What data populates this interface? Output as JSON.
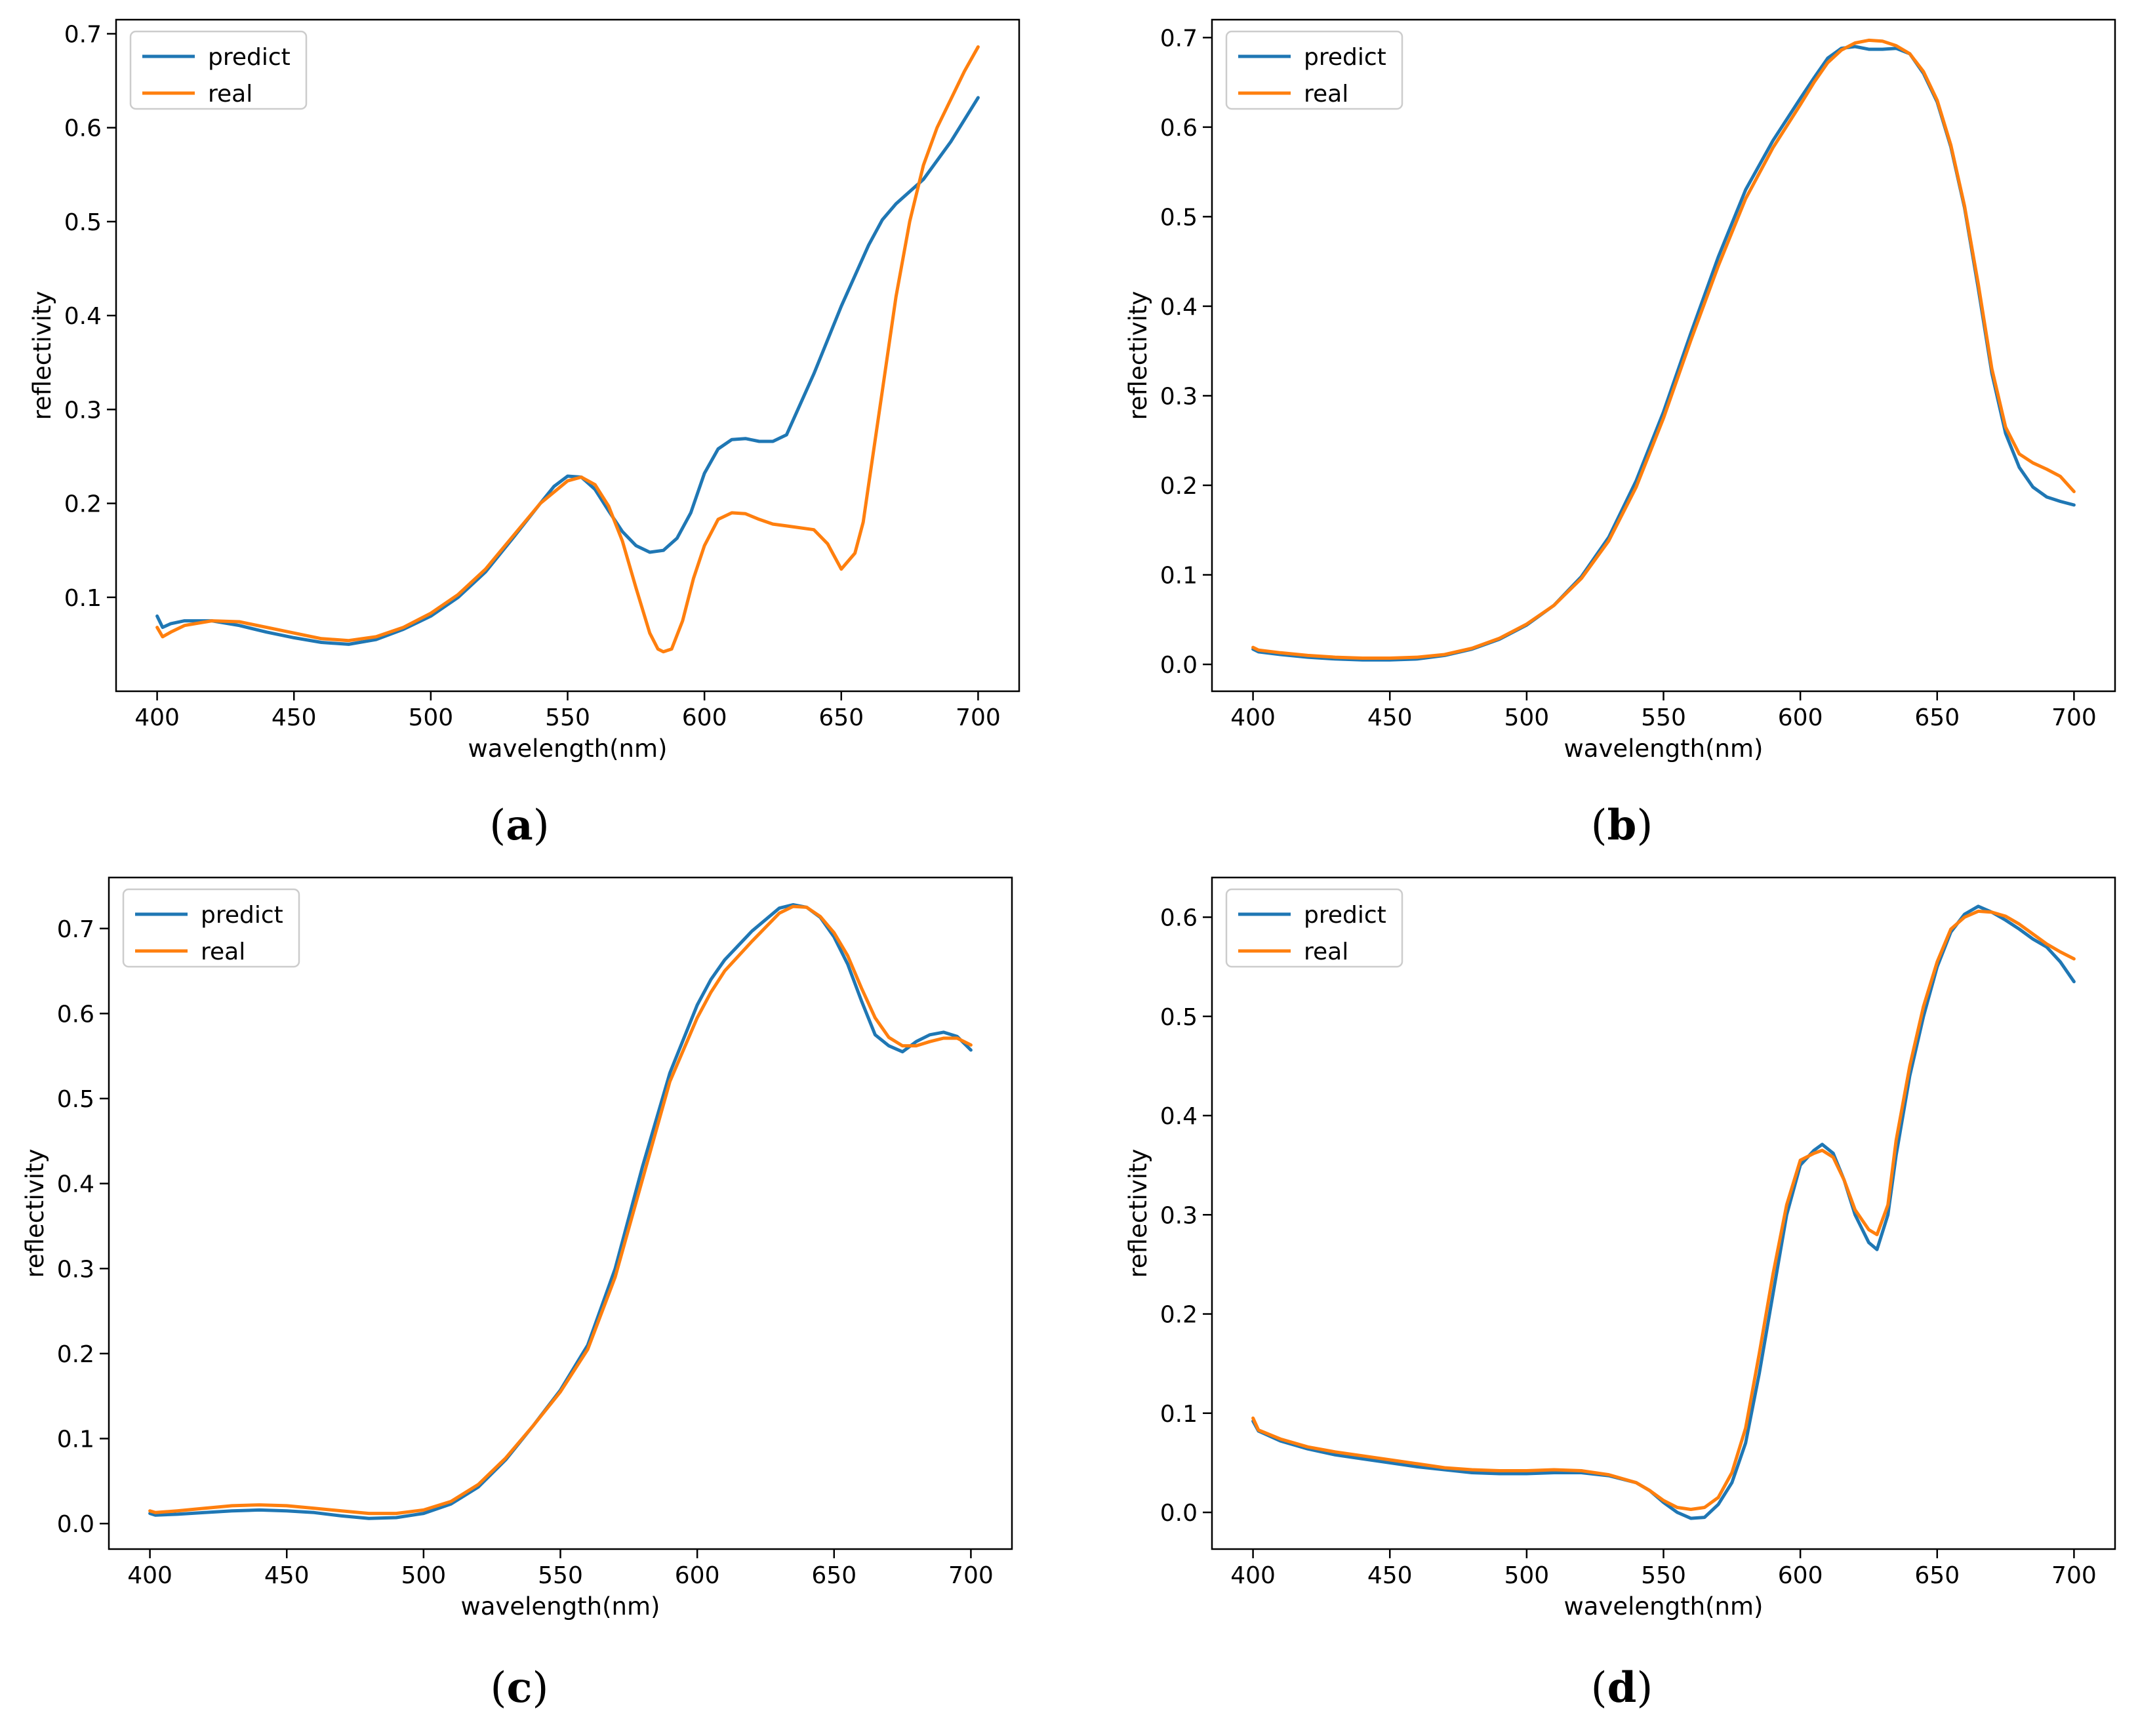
{
  "figure": {
    "captions": [
      "(a)",
      "(b)",
      "(c)",
      "(d)"
    ]
  },
  "colors": {
    "predict": "#1f77b4",
    "real": "#ff7f0e",
    "axis": "#000000",
    "legend_border": "#cccccc"
  },
  "chart_data": [
    {
      "type": "line",
      "panel": "a",
      "title": "",
      "xlabel": "wavelength(nm)",
      "ylabel": "reflectivity",
      "xlim": [
        385,
        715
      ],
      "ylim": [
        0.0,
        0.715
      ],
      "xticks": [
        400,
        450,
        500,
        550,
        600,
        650,
        700
      ],
      "yticks": [
        0.1,
        0.2,
        0.3,
        0.4,
        0.5,
        0.6,
        0.7
      ],
      "legend_position": "top-left",
      "grid": false,
      "series": [
        {
          "name": "predict",
          "x": [
            400,
            402,
            405,
            410,
            420,
            430,
            440,
            450,
            460,
            470,
            480,
            490,
            500,
            510,
            520,
            530,
            540,
            545,
            550,
            555,
            560,
            565,
            570,
            575,
            580,
            585,
            590,
            595,
            600,
            605,
            610,
            615,
            620,
            625,
            630,
            640,
            650,
            660,
            665,
            670,
            680,
            690,
            700
          ],
          "y": [
            0.08,
            0.068,
            0.072,
            0.075,
            0.075,
            0.07,
            0.063,
            0.057,
            0.052,
            0.05,
            0.055,
            0.066,
            0.08,
            0.1,
            0.127,
            0.163,
            0.2,
            0.218,
            0.229,
            0.228,
            0.215,
            0.192,
            0.17,
            0.155,
            0.148,
            0.15,
            0.163,
            0.19,
            0.232,
            0.258,
            0.268,
            0.269,
            0.266,
            0.266,
            0.273,
            0.338,
            0.41,
            0.475,
            0.502,
            0.519,
            0.545,
            0.585,
            0.632
          ]
        },
        {
          "name": "real",
          "x": [
            400,
            402,
            405,
            410,
            420,
            430,
            440,
            450,
            460,
            470,
            480,
            490,
            500,
            510,
            520,
            530,
            540,
            550,
            555,
            560,
            565,
            570,
            575,
            580,
            583,
            585,
            588,
            592,
            596,
            600,
            605,
            610,
            615,
            620,
            625,
            630,
            640,
            645,
            650,
            655,
            658,
            660,
            665,
            670,
            675,
            680,
            685,
            690,
            695,
            700
          ],
          "y": [
            0.068,
            0.058,
            0.063,
            0.07,
            0.075,
            0.074,
            0.068,
            0.062,
            0.056,
            0.054,
            0.058,
            0.068,
            0.083,
            0.103,
            0.13,
            0.165,
            0.2,
            0.224,
            0.228,
            0.22,
            0.197,
            0.16,
            0.11,
            0.062,
            0.045,
            0.042,
            0.045,
            0.075,
            0.12,
            0.155,
            0.183,
            0.19,
            0.189,
            0.183,
            0.178,
            0.176,
            0.172,
            0.157,
            0.13,
            0.147,
            0.18,
            0.22,
            0.32,
            0.42,
            0.5,
            0.56,
            0.6,
            0.63,
            0.66,
            0.686
          ]
        }
      ]
    },
    {
      "type": "line",
      "panel": "b",
      "title": "",
      "xlabel": "wavelength(nm)",
      "ylabel": "reflectivity",
      "xlim": [
        385,
        715
      ],
      "ylim": [
        -0.03,
        0.72
      ],
      "xticks": [
        400,
        450,
        500,
        550,
        600,
        650,
        700
      ],
      "yticks": [
        0.0,
        0.1,
        0.2,
        0.3,
        0.4,
        0.5,
        0.6,
        0.7
      ],
      "legend_position": "top-left",
      "grid": false,
      "series": [
        {
          "name": "predict",
          "x": [
            400,
            402,
            410,
            420,
            430,
            440,
            450,
            460,
            470,
            480,
            490,
            500,
            510,
            520,
            530,
            540,
            550,
            560,
            570,
            580,
            590,
            600,
            605,
            610,
            615,
            620,
            625,
            630,
            635,
            640,
            645,
            650,
            655,
            660,
            665,
            670,
            675,
            680,
            685,
            690,
            695,
            700
          ],
          "y": [
            0.017,
            0.014,
            0.011,
            0.008,
            0.006,
            0.005,
            0.005,
            0.006,
            0.01,
            0.017,
            0.028,
            0.044,
            0.066,
            0.098,
            0.142,
            0.205,
            0.282,
            0.37,
            0.455,
            0.53,
            0.585,
            0.632,
            0.655,
            0.677,
            0.688,
            0.69,
            0.687,
            0.687,
            0.688,
            0.682,
            0.66,
            0.628,
            0.578,
            0.51,
            0.42,
            0.325,
            0.258,
            0.22,
            0.198,
            0.187,
            0.182,
            0.178
          ]
        },
        {
          "name": "real",
          "x": [
            400,
            402,
            410,
            420,
            430,
            440,
            450,
            460,
            470,
            480,
            490,
            500,
            510,
            520,
            530,
            540,
            550,
            560,
            570,
            580,
            590,
            600,
            605,
            610,
            615,
            620,
            625,
            630,
            635,
            640,
            645,
            650,
            655,
            660,
            665,
            670,
            675,
            680,
            685,
            690,
            695,
            700
          ],
          "y": [
            0.019,
            0.016,
            0.013,
            0.01,
            0.008,
            0.007,
            0.007,
            0.008,
            0.011,
            0.018,
            0.029,
            0.045,
            0.066,
            0.096,
            0.138,
            0.198,
            0.275,
            0.362,
            0.445,
            0.52,
            0.577,
            0.625,
            0.65,
            0.672,
            0.686,
            0.694,
            0.697,
            0.696,
            0.691,
            0.682,
            0.662,
            0.63,
            0.58,
            0.512,
            0.425,
            0.33,
            0.265,
            0.235,
            0.225,
            0.218,
            0.21,
            0.193
          ]
        }
      ]
    },
    {
      "type": "line",
      "panel": "c",
      "title": "",
      "xlabel": "wavelength(nm)",
      "ylabel": "reflectivity",
      "xlim": [
        385,
        715
      ],
      "ylim": [
        -0.03,
        0.76
      ],
      "xticks": [
        400,
        450,
        500,
        550,
        600,
        650,
        700
      ],
      "yticks": [
        0.0,
        0.1,
        0.2,
        0.3,
        0.4,
        0.5,
        0.6,
        0.7
      ],
      "legend_position": "top-left",
      "grid": false,
      "series": [
        {
          "name": "predict",
          "x": [
            400,
            402,
            410,
            420,
            430,
            440,
            450,
            460,
            470,
            480,
            490,
            500,
            510,
            520,
            530,
            540,
            550,
            560,
            570,
            580,
            590,
            600,
            605,
            610,
            620,
            630,
            635,
            640,
            645,
            650,
            655,
            660,
            665,
            670,
            675,
            680,
            685,
            690,
            695,
            700
          ],
          "y": [
            0.012,
            0.01,
            0.011,
            0.013,
            0.015,
            0.016,
            0.015,
            0.013,
            0.009,
            0.006,
            0.007,
            0.012,
            0.023,
            0.043,
            0.075,
            0.115,
            0.157,
            0.21,
            0.3,
            0.42,
            0.53,
            0.61,
            0.64,
            0.663,
            0.697,
            0.724,
            0.728,
            0.725,
            0.713,
            0.69,
            0.658,
            0.615,
            0.575,
            0.562,
            0.555,
            0.567,
            0.575,
            0.578,
            0.573,
            0.557
          ]
        },
        {
          "name": "real",
          "x": [
            400,
            402,
            410,
            420,
            430,
            440,
            450,
            460,
            470,
            480,
            490,
            500,
            510,
            520,
            530,
            540,
            550,
            560,
            570,
            580,
            590,
            600,
            605,
            610,
            620,
            630,
            635,
            640,
            645,
            650,
            655,
            660,
            665,
            670,
            675,
            680,
            685,
            690,
            695,
            700
          ],
          "y": [
            0.015,
            0.013,
            0.015,
            0.018,
            0.021,
            0.022,
            0.021,
            0.018,
            0.015,
            0.012,
            0.012,
            0.016,
            0.026,
            0.046,
            0.077,
            0.115,
            0.155,
            0.205,
            0.29,
            0.405,
            0.52,
            0.595,
            0.625,
            0.65,
            0.685,
            0.718,
            0.726,
            0.725,
            0.714,
            0.695,
            0.668,
            0.63,
            0.595,
            0.572,
            0.562,
            0.562,
            0.567,
            0.571,
            0.571,
            0.563
          ]
        }
      ]
    },
    {
      "type": "line",
      "panel": "d",
      "title": "",
      "xlabel": "wavelength(nm)",
      "ylabel": "reflectivity",
      "xlim": [
        385,
        715
      ],
      "ylim": [
        -0.037,
        0.64
      ],
      "xticks": [
        400,
        450,
        500,
        550,
        600,
        650,
        700
      ],
      "yticks": [
        0.0,
        0.1,
        0.2,
        0.3,
        0.4,
        0.5,
        0.6
      ],
      "legend_position": "top-left",
      "grid": false,
      "series": [
        {
          "name": "predict",
          "x": [
            400,
            402,
            410,
            420,
            430,
            440,
            450,
            460,
            470,
            480,
            490,
            500,
            510,
            520,
            530,
            540,
            545,
            550,
            555,
            560,
            565,
            570,
            575,
            580,
            585,
            590,
            595,
            600,
            605,
            608,
            612,
            616,
            620,
            625,
            628,
            632,
            635,
            640,
            645,
            650,
            655,
            660,
            665,
            670,
            675,
            680,
            685,
            690,
            695,
            700
          ],
          "y": [
            0.092,
            0.082,
            0.072,
            0.064,
            0.058,
            0.054,
            0.05,
            0.046,
            0.043,
            0.04,
            0.039,
            0.039,
            0.04,
            0.04,
            0.037,
            0.03,
            0.022,
            0.01,
            0.0,
            -0.006,
            -0.005,
            0.008,
            0.03,
            0.07,
            0.14,
            0.22,
            0.3,
            0.35,
            0.365,
            0.371,
            0.362,
            0.335,
            0.3,
            0.272,
            0.265,
            0.3,
            0.36,
            0.44,
            0.5,
            0.55,
            0.585,
            0.603,
            0.611,
            0.605,
            0.597,
            0.588,
            0.578,
            0.57,
            0.555,
            0.535
          ]
        },
        {
          "name": "real",
          "x": [
            400,
            402,
            410,
            420,
            430,
            440,
            450,
            460,
            470,
            480,
            490,
            500,
            510,
            520,
            530,
            540,
            545,
            550,
            555,
            560,
            565,
            570,
            575,
            580,
            585,
            590,
            595,
            600,
            605,
            608,
            612,
            616,
            620,
            625,
            628,
            632,
            635,
            640,
            645,
            650,
            655,
            660,
            665,
            670,
            675,
            680,
            685,
            690,
            695,
            700
          ],
          "y": [
            0.095,
            0.083,
            0.074,
            0.066,
            0.061,
            0.057,
            0.053,
            0.049,
            0.045,
            0.043,
            0.042,
            0.042,
            0.043,
            0.042,
            0.038,
            0.03,
            0.022,
            0.012,
            0.005,
            0.003,
            0.005,
            0.015,
            0.04,
            0.085,
            0.16,
            0.24,
            0.31,
            0.355,
            0.362,
            0.365,
            0.358,
            0.335,
            0.305,
            0.285,
            0.28,
            0.31,
            0.375,
            0.45,
            0.51,
            0.555,
            0.588,
            0.6,
            0.606,
            0.605,
            0.601,
            0.593,
            0.583,
            0.573,
            0.565,
            0.558
          ]
        }
      ]
    }
  ]
}
